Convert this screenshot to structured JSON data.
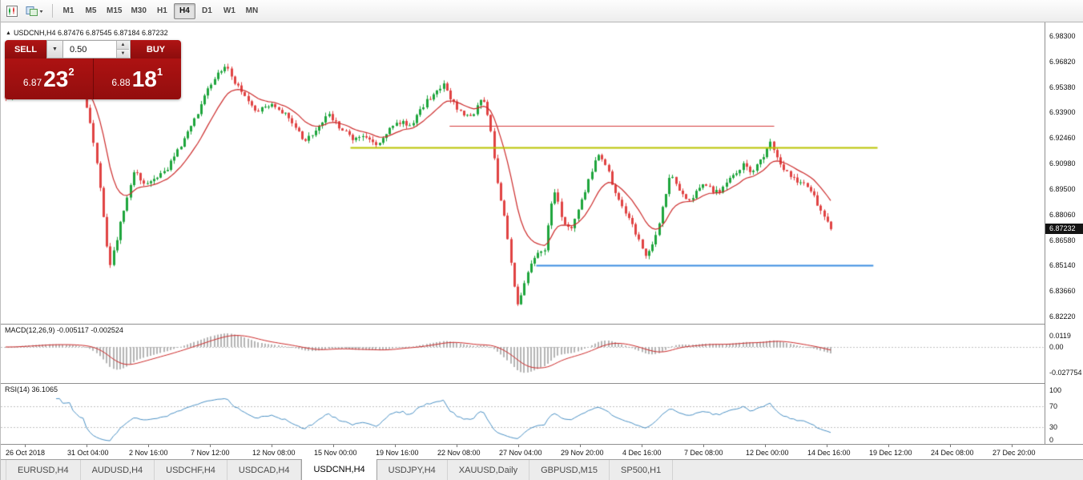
{
  "toolbar": {
    "timeframes": [
      "M1",
      "M5",
      "M15",
      "M30",
      "H1",
      "H4",
      "D1",
      "W1",
      "MN"
    ],
    "active_timeframe": "H4"
  },
  "chart_header": {
    "text": "USDCNH,H4 6.87476 6.87545 6.87184 6.87232"
  },
  "trade_panel": {
    "sell_label": "SELL",
    "buy_label": "BUY",
    "volume_value": "0.50",
    "sell_price": {
      "prefix": "6.87",
      "big": "23",
      "sup": "2"
    },
    "buy_price": {
      "prefix": "6.88",
      "big": "18",
      "sup": "1"
    }
  },
  "panes": {
    "macd_label": "MACD(12,26,9) -0.005117 -0.002524",
    "rsi_label": "RSI(14) 36.1065"
  },
  "price_axis": {
    "main_labels": [
      "6.98300",
      "6.96820",
      "6.95380",
      "6.93900",
      "6.92460",
      "6.90980",
      "6.89500",
      "6.88060",
      "6.86580",
      "6.85140",
      "6.83660",
      "6.82220"
    ],
    "current_badge": "6.87232",
    "macd_labels": [
      "0.0119",
      "0.00",
      "-0.027754"
    ],
    "rsi_labels": [
      "100",
      "70",
      "30",
      "0"
    ]
  },
  "time_axis": {
    "labels": [
      "26 Oct 2018",
      "31 Oct 04:00",
      "2 Nov 16:00",
      "7 Nov 12:00",
      "12 Nov 08:00",
      "15 Nov 00:00",
      "19 Nov 16:00",
      "22 Nov 08:00",
      "27 Nov 04:00",
      "29 Nov 20:00",
      "4 Dec 16:00",
      "7 Dec 08:00",
      "12 Dec 00:00",
      "14 Dec 16:00",
      "19 Dec 12:00",
      "24 Dec 08:00",
      "27 Dec 20:00"
    ]
  },
  "tab_bar": {
    "active": "USDCNH,H4",
    "tabs": [
      "EURUSD,H4",
      "AUDUSD,H4",
      "USDCHF,H4",
      "USDCAD,H4",
      "USDCNH,H4",
      "USDJPY,H4",
      "XAUUSD,Daily",
      "GBPUSD,M15",
      "SP500,H1"
    ]
  },
  "chart_data": {
    "type": "candlestick",
    "symbol": "USDCNH",
    "timeframe": "H4",
    "ohlc_current": {
      "open": 6.87476,
      "high": 6.87545,
      "low": 6.87184,
      "close": 6.87232
    },
    "y_axis_range": [
      6.8222,
      6.983
    ],
    "x_axis_start": "26 Oct 2018",
    "x_axis_end": "27 Dec 2018 20:00",
    "last_price": 6.87232,
    "candle_count": 246,
    "levels": [
      {
        "name": "resistance-red",
        "price": 6.9315,
        "color": "#d43a3a",
        "width": 1,
        "x0": 0.43,
        "x1": 0.741
      },
      {
        "name": "resistance-olive",
        "price": 6.9191,
        "color": "#b9c400",
        "width": 2,
        "x0": 0.335,
        "x1": 0.84
      },
      {
        "name": "support-blue",
        "price": 6.8514,
        "color": "#3b8de0",
        "width": 2,
        "x0": 0.513,
        "x1": 0.836
      }
    ],
    "colors": {
      "up": "#1ea53c",
      "down": "#e04343",
      "ma": "#cc2a2a",
      "macd_hist": "#b4b4b4",
      "macd_signal": "#cc2a2a",
      "rsi": "#4a90c4",
      "dotted": "#c0c0c0"
    },
    "indicators": {
      "ma": {
        "type": "ema",
        "period": 13
      },
      "macd": {
        "params": [
          12,
          26,
          9
        ],
        "current": [
          -0.005117,
          -0.002524
        ],
        "axis_values": [
          0.0119,
          0,
          -0.027754
        ]
      },
      "rsi": {
        "params": [
          14
        ],
        "current": 36.1065,
        "levels": [
          70,
          30
        ],
        "scale": [
          0,
          100
        ]
      }
    },
    "price_path": [
      [
        0.0,
        6.948
      ],
      [
        0.02,
        6.954
      ],
      [
        0.05,
        6.959
      ],
      [
        0.08,
        6.956
      ],
      [
        0.095,
        6.949
      ],
      [
        0.11,
        6.912
      ],
      [
        0.126,
        6.85
      ],
      [
        0.14,
        6.878
      ],
      [
        0.155,
        6.906
      ],
      [
        0.17,
        6.897
      ],
      [
        0.19,
        6.904
      ],
      [
        0.203,
        6.912
      ],
      [
        0.222,
        6.929
      ],
      [
        0.237,
        6.944
      ],
      [
        0.252,
        6.959
      ],
      [
        0.266,
        6.966
      ],
      [
        0.278,
        6.956
      ],
      [
        0.29,
        6.947
      ],
      [
        0.305,
        6.94
      ],
      [
        0.32,
        6.944
      ],
      [
        0.334,
        6.94
      ],
      [
        0.348,
        6.934
      ],
      [
        0.361,
        6.921
      ],
      [
        0.375,
        6.929
      ],
      [
        0.39,
        6.938
      ],
      [
        0.404,
        6.931
      ],
      [
        0.419,
        6.924
      ],
      [
        0.436,
        6.925
      ],
      [
        0.45,
        6.921
      ],
      [
        0.463,
        6.928
      ],
      [
        0.477,
        6.934
      ],
      [
        0.491,
        6.931
      ],
      [
        0.506,
        6.943
      ],
      [
        0.519,
        6.951
      ],
      [
        0.53,
        6.955
      ],
      [
        0.54,
        6.946
      ],
      [
        0.552,
        6.939
      ],
      [
        0.566,
        6.937
      ],
      [
        0.578,
        6.949
      ],
      [
        0.588,
        6.928
      ],
      [
        0.597,
        6.895
      ],
      [
        0.607,
        6.872
      ],
      [
        0.62,
        6.827
      ],
      [
        0.63,
        6.845
      ],
      [
        0.641,
        6.856
      ],
      [
        0.653,
        6.86
      ],
      [
        0.664,
        6.896
      ],
      [
        0.675,
        6.878
      ],
      [
        0.685,
        6.872
      ],
      [
        0.696,
        6.885
      ],
      [
        0.708,
        6.903
      ],
      [
        0.718,
        6.916
      ],
      [
        0.728,
        6.908
      ],
      [
        0.739,
        6.893
      ],
      [
        0.75,
        6.882
      ],
      [
        0.763,
        6.871
      ],
      [
        0.776,
        6.856
      ],
      [
        0.787,
        6.866
      ],
      [
        0.797,
        6.888
      ],
      [
        0.806,
        6.905
      ],
      [
        0.816,
        6.896
      ],
      [
        0.827,
        6.889
      ],
      [
        0.838,
        6.894
      ],
      [
        0.849,
        6.898
      ],
      [
        0.86,
        6.893
      ],
      [
        0.871,
        6.896
      ],
      [
        0.883,
        6.904
      ],
      [
        0.894,
        6.91
      ],
      [
        0.904,
        6.904
      ],
      [
        0.915,
        6.912
      ],
      [
        0.927,
        6.922
      ],
      [
        0.938,
        6.91
      ],
      [
        0.949,
        6.903
      ],
      [
        0.96,
        6.899
      ],
      [
        0.973,
        6.896
      ],
      [
        0.985,
        6.886
      ],
      [
        1.0,
        6.8723
      ]
    ]
  }
}
